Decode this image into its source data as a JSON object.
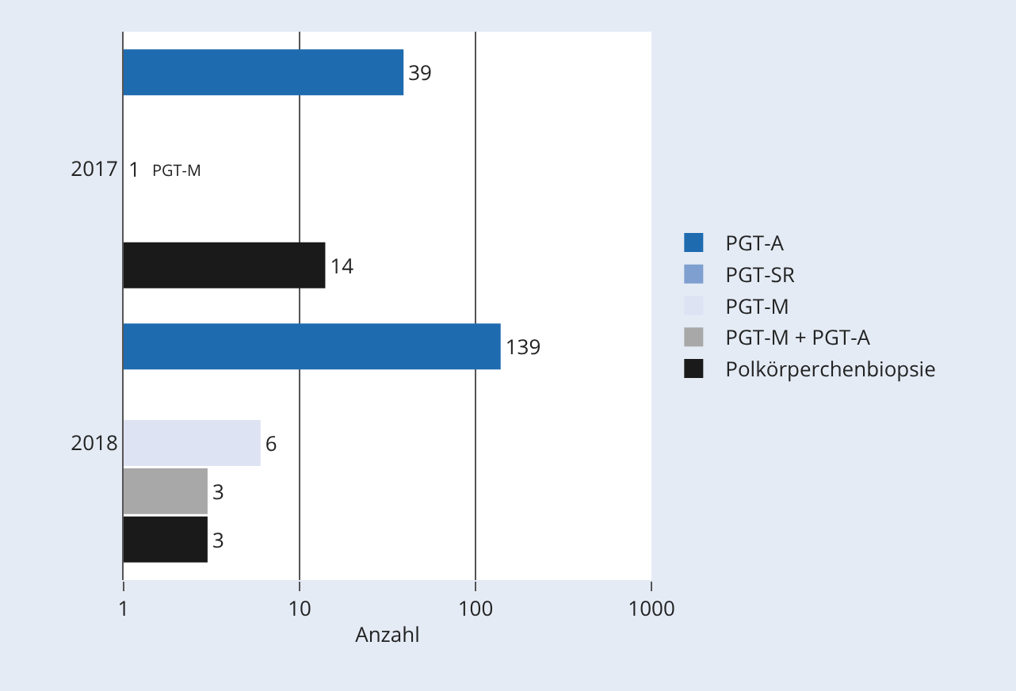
{
  "chart_data": {
    "type": "bar",
    "orientation": "horizontal",
    "xlabel": "Anzahl",
    "categories": [
      "2017",
      "2018"
    ],
    "series": [
      {
        "name": "PGT-A",
        "color": "#1f6bb0",
        "values": [
          39,
          139
        ]
      },
      {
        "name": "PGT-SR",
        "color": "#7f9fd0",
        "values": [
          null,
          null
        ]
      },
      {
        "name": "PGT-M",
        "color": "#dde3f3",
        "values": [
          1,
          6
        ]
      },
      {
        "name": "PGT-M + PGT-A",
        "color": "#a8a8a8",
        "values": [
          null,
          3
        ]
      },
      {
        "name": "Polkörperchenbiopsie",
        "color": "#1a1a1a",
        "values": [
          14,
          3
        ]
      }
    ],
    "log": "x",
    "xlim": [
      1,
      1000
    ],
    "xticks": [
      1,
      10,
      100,
      1000
    ],
    "grid": "x",
    "legend": "right",
    "data_labels": true,
    "annotations": [
      {
        "text": "PGT-M",
        "x": 1,
        "y": "2017"
      }
    ]
  }
}
